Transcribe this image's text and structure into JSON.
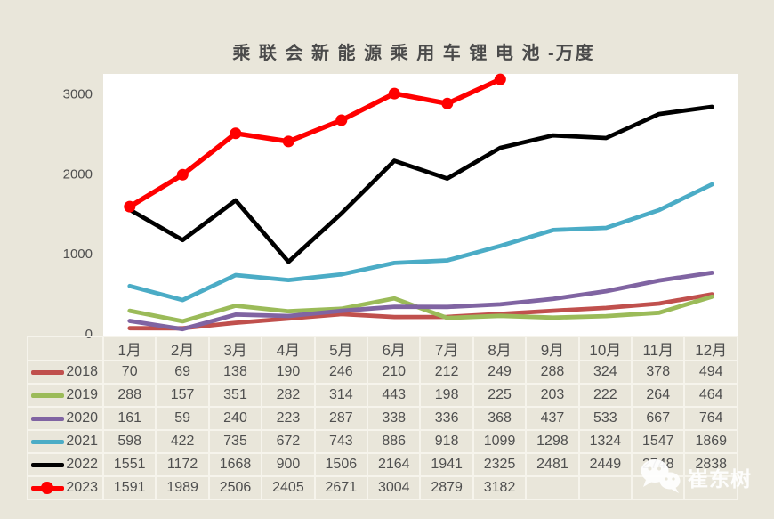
{
  "title": "乘 联 会 新 能 源 乘 用 车 锂 电 池 -万度",
  "watermark": {
    "icon": "wechat-icon",
    "label": "崔东树"
  },
  "colors": {
    "canvas_bg": "#e9e6da",
    "plot_bg": "#ffffff",
    "table_border": "#f6f4ec",
    "text": "#4f4f4f",
    "series_2023_accent": "#ff0000"
  },
  "chart_data": {
    "type": "line",
    "title": "乘 联 会 新 能 源 乘 用 车 锂 电 池 -万度",
    "xlabel": "",
    "ylabel": "",
    "ylim": [
      0,
      3250
    ],
    "yticks": [
      0,
      1000,
      2000,
      3000
    ],
    "grid": false,
    "legend_position": "table-left",
    "categories": [
      "1月",
      "2月",
      "3月",
      "4月",
      "5月",
      "6月",
      "7月",
      "8月",
      "9月",
      "10月",
      "11月",
      "12月"
    ],
    "series": [
      {
        "name": "2018",
        "color": "#c0504d",
        "marker": false,
        "values": [
          70,
          69,
          138,
          190,
          246,
          210,
          212,
          249,
          288,
          324,
          378,
          494
        ]
      },
      {
        "name": "2019",
        "color": "#9bbb59",
        "marker": false,
        "values": [
          288,
          157,
          351,
          282,
          314,
          443,
          198,
          225,
          203,
          222,
          264,
          464
        ]
      },
      {
        "name": "2020",
        "color": "#8064a2",
        "marker": false,
        "values": [
          161,
          59,
          240,
          223,
          287,
          338,
          336,
          368,
          437,
          533,
          667,
          764
        ]
      },
      {
        "name": "2021",
        "color": "#4bacc6",
        "marker": false,
        "values": [
          598,
          422,
          735,
          672,
          743,
          886,
          918,
          1099,
          1298,
          1324,
          1547,
          1869
        ]
      },
      {
        "name": "2022",
        "color": "#000000",
        "marker": false,
        "values": [
          1551,
          1172,
          1668,
          900,
          1506,
          2164,
          1941,
          2325,
          2481,
          2449,
          2748,
          2838
        ]
      },
      {
        "name": "2023",
        "color": "#ff0000",
        "marker": true,
        "values": [
          1591,
          1989,
          2506,
          2405,
          2671,
          3004,
          2879,
          3182,
          null,
          null,
          null,
          null
        ]
      }
    ]
  }
}
